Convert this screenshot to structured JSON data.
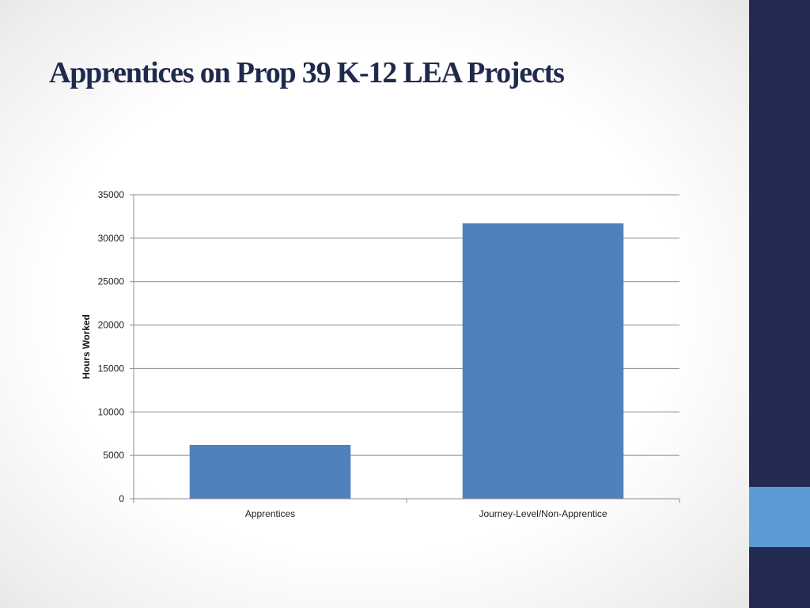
{
  "slide": {
    "title": "Apprentices on Prop 39 K-12 LEA Projects"
  },
  "colors": {
    "bar": "#4f81bd",
    "gridline": "#8c8c8c",
    "sidebar_dark": "#222a52",
    "sidebar_accent": "#5b9bd5",
    "title": "#1f2a4d"
  },
  "chart_data": {
    "type": "bar",
    "categories": [
      "Apprentices",
      "Journey-Level/Non-Apprentice"
    ],
    "values": [
      6200,
      31700
    ],
    "title": "",
    "xlabel": "",
    "ylabel": "Hours Worked",
    "ylim": [
      0,
      35000
    ],
    "yticks": [
      0,
      5000,
      10000,
      15000,
      20000,
      25000,
      30000,
      35000
    ],
    "grid": true,
    "legend": "none"
  }
}
